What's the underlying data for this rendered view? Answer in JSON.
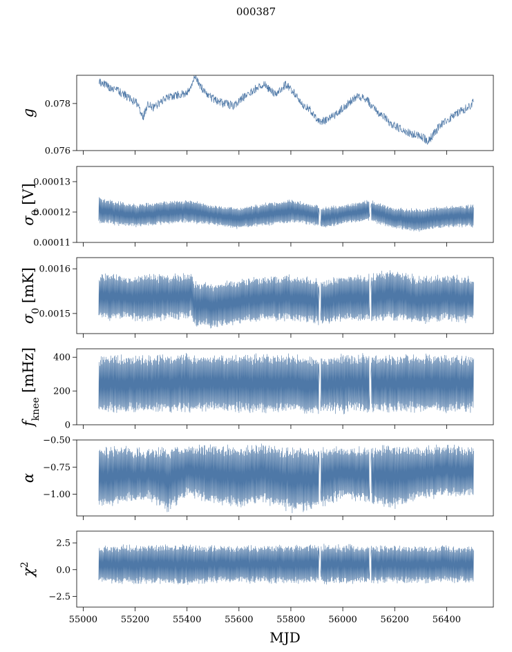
{
  "figure": {
    "title": "000387"
  },
  "theme": {
    "line_color": "#4e78a7",
    "axis_color": "#000000",
    "background": "#ffffff"
  },
  "chart_data": [
    {
      "type": "line",
      "panel": "g",
      "ylabel_parts": [
        {
          "t": "g",
          "style": "italic"
        }
      ],
      "xlim": [
        54975,
        56580
      ],
      "ylim": [
        0.076,
        0.0792
      ],
      "yticks": [
        0.076,
        0.078
      ],
      "ytick_labels": [
        "0.076",
        "0.078"
      ],
      "series": [
        {
          "kind": "trace",
          "x": [
            55060,
            55100,
            55140,
            55180,
            55210,
            55230,
            55250,
            55270,
            55300,
            55340,
            55380,
            55410,
            55430,
            55460,
            55500,
            55540,
            55580,
            55620,
            55660,
            55700,
            55740,
            55780,
            55810,
            55840,
            55870,
            55890,
            55910,
            55940,
            55970,
            56000,
            56030,
            56060,
            56090,
            56120,
            56150,
            56180,
            56210,
            56240,
            56270,
            56300,
            56330,
            56350,
            56370,
            56400,
            56430,
            56460,
            56490,
            56505
          ],
          "y": [
            0.0789,
            0.0787,
            0.0785,
            0.0782,
            0.078,
            0.0774,
            0.078,
            0.0778,
            0.0781,
            0.0783,
            0.0784,
            0.0785,
            0.0791,
            0.0786,
            0.0782,
            0.078,
            0.0779,
            0.0783,
            0.0786,
            0.0788,
            0.0784,
            0.0788,
            0.0785,
            0.078,
            0.0778,
            0.0775,
            0.0772,
            0.0773,
            0.0775,
            0.0778,
            0.0781,
            0.0783,
            0.0782,
            0.0778,
            0.0775,
            0.0772,
            0.077,
            0.0768,
            0.0767,
            0.0766,
            0.0764,
            0.0767,
            0.077,
            0.0773,
            0.0775,
            0.0777,
            0.0779,
            0.0781
          ],
          "wiggle": 0.00018
        }
      ]
    },
    {
      "type": "line",
      "panel": "sigma0_V",
      "ylabel_parts": [
        {
          "t": "σ",
          "style": "italic"
        },
        {
          "t": "0",
          "style": "sub"
        },
        {
          "t": " [V]",
          "style": "normal"
        }
      ],
      "xlim": [
        54975,
        56580
      ],
      "ylim": [
        0.00011,
        0.000135
      ],
      "yticks": [
        0.00011,
        0.00012,
        0.00013
      ],
      "ytick_labels": [
        "0.00011",
        "0.00012",
        "0.00013"
      ],
      "series": [
        {
          "kind": "band",
          "x": [
            55060,
            55100,
            55200,
            55300,
            55400,
            55500,
            55600,
            55700,
            55800,
            55900,
            55910,
            56000,
            56100,
            56200,
            56300,
            56400,
            56505
          ],
          "y_low": [
            0.000117,
            0.0001165,
            0.0001155,
            0.0001165,
            0.000117,
            0.000116,
            0.000115,
            0.000116,
            0.000117,
            0.000116,
            0.000115,
            0.0001165,
            0.0001175,
            0.000115,
            0.000114,
            0.0001155,
            0.0001155
          ],
          "y_high": [
            0.0001245,
            0.0001235,
            0.000122,
            0.000123,
            0.0001235,
            0.000122,
            0.000121,
            0.0001225,
            0.0001235,
            0.000122,
            0.000121,
            0.000122,
            0.0001235,
            0.000121,
            0.0001205,
            0.0001215,
            0.000122
          ],
          "gaps": [
            55912,
            56106
          ]
        }
      ]
    },
    {
      "type": "line",
      "panel": "sigma0_mK",
      "ylabel_parts": [
        {
          "t": "σ",
          "style": "italic"
        },
        {
          "t": "0",
          "style": "sub"
        },
        {
          "t": " [mK]",
          "style": "normal"
        }
      ],
      "xlim": [
        54975,
        56580
      ],
      "ylim": [
        0.001455,
        0.001625
      ],
      "yticks": [
        0.0015,
        0.0016
      ],
      "ytick_labels": [
        "0.0015",
        "0.0016"
      ],
      "series": [
        {
          "kind": "band",
          "x": [
            55060,
            55150,
            55250,
            55350,
            55420,
            55430,
            55500,
            55600,
            55700,
            55800,
            55900,
            55910,
            56000,
            56100,
            56200,
            56300,
            56400,
            56505
          ],
          "y_low": [
            0.001495,
            0.001492,
            0.00149,
            0.001495,
            0.001495,
            0.001478,
            0.001475,
            0.001485,
            0.00149,
            0.00149,
            0.001485,
            0.00148,
            0.00149,
            0.00149,
            0.001492,
            0.001485,
            0.00149,
            0.001488
          ],
          "y_high": [
            0.001585,
            0.001578,
            0.00158,
            0.00158,
            0.001585,
            0.001565,
            0.00156,
            0.00157,
            0.001575,
            0.00158,
            0.00157,
            0.001565,
            0.001578,
            0.001582,
            0.00159,
            0.001575,
            0.00158,
            0.001575
          ],
          "gaps": [
            55912,
            56106
          ]
        }
      ]
    },
    {
      "type": "line",
      "panel": "fknee",
      "ylabel_parts": [
        {
          "t": "f",
          "style": "italic"
        },
        {
          "t": "knee",
          "style": "sub"
        },
        {
          "t": " [mHz]",
          "style": "normal"
        }
      ],
      "xlim": [
        54975,
        56580
      ],
      "ylim": [
        0,
        450
      ],
      "yticks": [
        0,
        200,
        400
      ],
      "ytick_labels": [
        "0",
        "200",
        "400"
      ],
      "series": [
        {
          "kind": "band",
          "x": [
            55060,
            55200,
            55400,
            55600,
            55800,
            55900,
            56000,
            56200,
            56400,
            56505
          ],
          "y_low": [
            90,
            95,
            100,
            100,
            100,
            90,
            95,
            100,
            100,
            100
          ],
          "y_high": [
            390,
            390,
            395,
            390,
            390,
            385,
            390,
            390,
            390,
            385
          ],
          "gaps": [
            55912,
            56106
          ]
        }
      ]
    },
    {
      "type": "line",
      "panel": "alpha",
      "ylabel_parts": [
        {
          "t": "α",
          "style": "italic"
        }
      ],
      "xlim": [
        54975,
        56580
      ],
      "ylim": [
        -1.2,
        -0.5
      ],
      "yticks": [
        -1.0,
        -0.75,
        -0.5
      ],
      "ytick_labels": [
        "−1.00",
        "−0.75",
        "−0.50"
      ],
      "series": [
        {
          "kind": "band",
          "x": [
            55060,
            55150,
            55250,
            55330,
            55400,
            55500,
            55600,
            55700,
            55800,
            55900,
            56000,
            56100,
            56200,
            56300,
            56400,
            56505
          ],
          "y_low": [
            -1.08,
            -1.05,
            -1.02,
            -1.12,
            -0.98,
            -1.05,
            -1.08,
            -1.05,
            -1.12,
            -1.1,
            -1.0,
            -1.05,
            -1.1,
            -1.0,
            -1.0,
            -0.98
          ],
          "y_high": [
            -0.6,
            -0.6,
            -0.62,
            -0.6,
            -0.58,
            -0.58,
            -0.6,
            -0.58,
            -0.6,
            -0.62,
            -0.6,
            -0.6,
            -0.58,
            -0.6,
            -0.58,
            -0.6
          ],
          "gaps": [
            55912,
            56106
          ]
        }
      ]
    },
    {
      "type": "line",
      "panel": "chi2",
      "ylabel_parts": [
        {
          "t": "χ",
          "style": "italic"
        },
        {
          "t": "2",
          "style": "sup"
        }
      ],
      "xlim": [
        54975,
        56580
      ],
      "ylim": [
        -3.5,
        3.6
      ],
      "yticks": [
        -2.5,
        0.0,
        2.5
      ],
      "ytick_labels": [
        "−2.5",
        "0.0",
        "2.5"
      ],
      "xlabel": "MJD",
      "xticks": [
        55000,
        55200,
        55400,
        55600,
        55800,
        56000,
        56200,
        56400
      ],
      "xtick_labels": [
        "55000",
        "55200",
        "55400",
        "55600",
        "55800",
        "56000",
        "56200",
        "56400"
      ],
      "series": [
        {
          "kind": "band",
          "x": [
            55060,
            55300,
            55600,
            55900,
            56200,
            56505
          ],
          "y_low": [
            -1.0,
            -1.1,
            -1.0,
            -1.05,
            -1.0,
            -1.0
          ],
          "y_high": [
            2.0,
            2.1,
            2.0,
            2.1,
            2.0,
            2.0
          ],
          "gaps": [
            55912,
            56106
          ]
        }
      ]
    }
  ]
}
